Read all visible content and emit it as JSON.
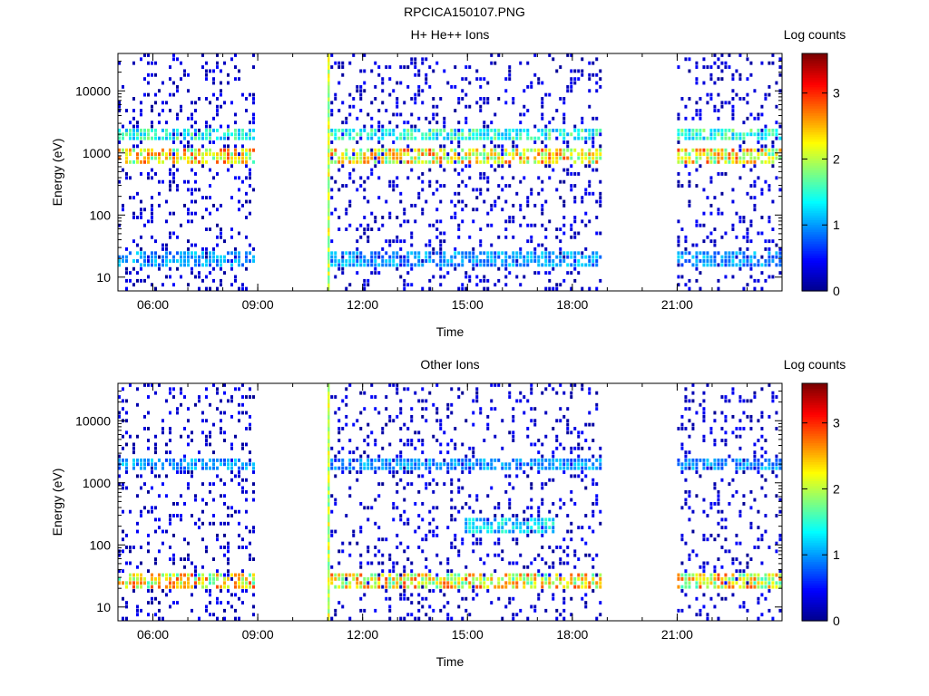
{
  "page_title": "RPCICA150107.PNG",
  "colors": {
    "colormap_jet": [
      "#00008f",
      "#0000ff",
      "#007fff",
      "#00ffff",
      "#7fff7f",
      "#ffff00",
      "#ff7f00",
      "#ff0000",
      "#7f0000"
    ]
  },
  "chart_data": [
    {
      "type": "heatmap",
      "title": "H+ He++ Ions",
      "xlabel": "Time",
      "ylabel": "Energy (eV)",
      "x_ticks": [
        "06:00",
        "09:00",
        "12:00",
        "15:00",
        "18:00",
        "21:00"
      ],
      "x_range_hours": [
        5.0,
        24.0
      ],
      "y_scale": "log",
      "y_ticks": [
        "10",
        "100",
        "1000",
        "10000"
      ],
      "y_range": [
        6,
        40000
      ],
      "colorbar": {
        "label": "Log counts",
        "ticks": [
          "0",
          "1",
          "2",
          "3"
        ],
        "range": [
          0,
          3.6
        ]
      },
      "data_intervals_hours": [
        [
          5.0,
          8.85
        ],
        [
          11.0,
          11.06
        ],
        [
          11.08,
          18.85
        ],
        [
          21.0,
          24.0
        ]
      ],
      "features": [
        {
          "energy_eV": 20,
          "log_counts": 1.2,
          "desc": "low-energy band"
        },
        {
          "energy_eV": 850,
          "log_counts": 2.8,
          "desc": "proton band"
        },
        {
          "energy_eV": 2000,
          "log_counts": 1.8,
          "desc": "alpha band"
        },
        {
          "time_hours": 11.05,
          "log_counts": 2.0,
          "desc": "vertical stripe across all energies"
        }
      ]
    },
    {
      "type": "heatmap",
      "title": "Other Ions",
      "xlabel": "Time",
      "ylabel": "Energy (eV)",
      "x_ticks": [
        "06:00",
        "09:00",
        "12:00",
        "15:00",
        "18:00",
        "21:00"
      ],
      "x_range_hours": [
        5.0,
        24.0
      ],
      "y_scale": "log",
      "y_ticks": [
        "10",
        "100",
        "1000",
        "10000"
      ],
      "y_range": [
        6,
        40000
      ],
      "colorbar": {
        "label": "Log counts",
        "ticks": [
          "0",
          "1",
          "2",
          "3"
        ],
        "range": [
          0,
          3.6
        ]
      },
      "data_intervals_hours": [
        [
          5.0,
          8.85
        ],
        [
          11.0,
          11.06
        ],
        [
          11.08,
          18.85
        ],
        [
          21.0,
          24.0
        ]
      ],
      "features": [
        {
          "energy_eV": 25,
          "log_counts": 2.8,
          "desc": "strong low-energy band"
        },
        {
          "energy_eV": 2000,
          "log_counts": 1.2,
          "desc": "weak band"
        },
        {
          "time_hours": 16.2,
          "energy_eV": 200,
          "log_counts": 1.5,
          "desc": "mid-energy enhancement"
        }
      ]
    }
  ]
}
